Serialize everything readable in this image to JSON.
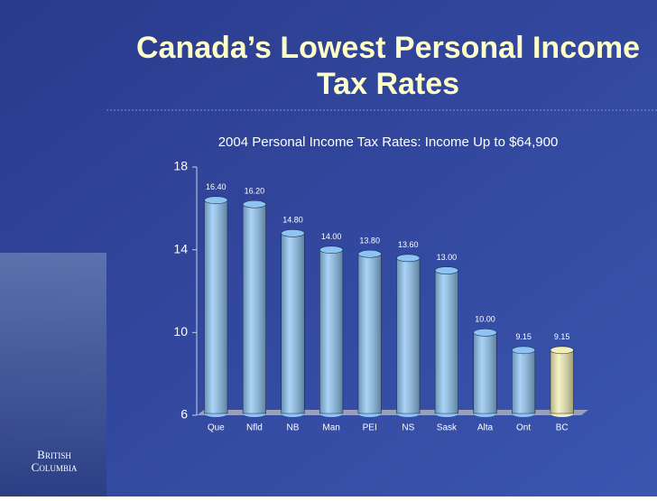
{
  "chart_data": {
    "type": "bar",
    "title": "Canada’s Lowest Personal Income Tax Rates",
    "subtitle": "2004 Personal Income Tax Rates: Income Up to $64,900",
    "categories": [
      "Que",
      "Nfld",
      "NB",
      "Man",
      "PEI",
      "NS",
      "Sask",
      "Alta",
      "Ont",
      "BC"
    ],
    "values": [
      16.4,
      16.2,
      14.8,
      14.0,
      13.8,
      13.6,
      13.0,
      10.0,
      9.15,
      9.15
    ],
    "value_labels": [
      "16.40",
      "16.20",
      "14.80",
      "14.00",
      "13.80",
      "13.60",
      "13.00",
      "10.00",
      "9.15",
      "9.15"
    ],
    "colors": [
      "#8ec4f2",
      "#8ec4f2",
      "#8ec4f2",
      "#8ec4f2",
      "#8ec4f2",
      "#8ec4f2",
      "#8ec4f2",
      "#8ec4f2",
      "#8ec4f2",
      "#f2f0b4"
    ],
    "ylim": [
      6,
      18
    ],
    "yticks": [
      6,
      10,
      14,
      18
    ],
    "grid": false
  },
  "logo": {
    "text": "British Columbia"
  }
}
